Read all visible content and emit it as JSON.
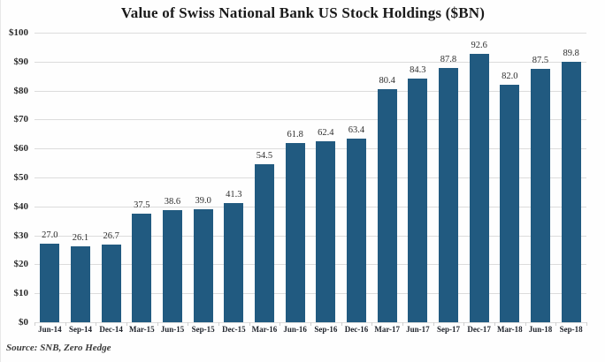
{
  "chart_data": {
    "type": "bar",
    "title": "Value of Swiss National Bank US Stock Holdings ($BN)",
    "categories": [
      "Jun-14",
      "Sep-14",
      "Dec-14",
      "Mar-15",
      "Jun-15",
      "Sep-15",
      "Dec-15",
      "Mar-16",
      "Jun-16",
      "Sep-16",
      "Dec-16",
      "Mar-17",
      "Jun-17",
      "Sep-17",
      "Dec-17",
      "Mar-18",
      "Jun-18",
      "Sep-18"
    ],
    "values": [
      27.0,
      26.1,
      26.7,
      37.5,
      38.6,
      39.0,
      41.3,
      54.5,
      61.8,
      62.4,
      63.4,
      80.4,
      84.3,
      87.8,
      92.6,
      82.0,
      87.5,
      89.8
    ],
    "value_labels": [
      "27.0",
      "26.1",
      "26.7",
      "37.5",
      "38.6",
      "39.0",
      "41.3",
      "54.5",
      "61.8",
      "62.4",
      "63.4",
      "80.4",
      "84.3",
      "87.8",
      "92.6",
      "82.0",
      "87.5",
      "89.8"
    ],
    "y_tick_labels": [
      "$100",
      "$90",
      "$80",
      "$70",
      "$60",
      "$50",
      "$40",
      "$30",
      "$20",
      "$10",
      "$0"
    ],
    "y_tick_values": [
      100,
      90,
      80,
      70,
      60,
      50,
      40,
      30,
      20,
      10,
      0
    ],
    "ylim": [
      0,
      100
    ],
    "xlabel": "",
    "ylabel": "",
    "grid": true,
    "legend": "none",
    "bar_color": "#215A80",
    "gridline_color": "#dcdcdc",
    "source": "Source: SNB, Zero Hedge"
  }
}
